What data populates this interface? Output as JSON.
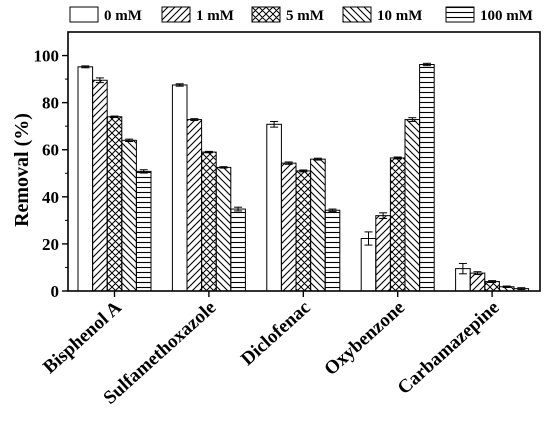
{
  "chart_data": {
    "type": "bar",
    "ylabel": "Removal (%)",
    "xlabel": "",
    "ylim": [
      0,
      110
    ],
    "yticks": [
      0,
      20,
      40,
      60,
      80,
      100
    ],
    "categories": [
      "Bisphenol A",
      "Sulfamethoxazole",
      "Diclofenac",
      "Oxybenzone",
      "Carbamazepine"
    ],
    "series": [
      {
        "name": "0 mM",
        "pattern": "empty",
        "values": [
          95.2,
          87.5,
          70.8,
          22.3,
          9.5
        ],
        "errors": [
          0.4,
          0.5,
          1.2,
          2.8,
          2.2
        ]
      },
      {
        "name": "1 mM",
        "pattern": "diag-fwd",
        "values": [
          89.5,
          72.8,
          54.3,
          32.0,
          7.6
        ],
        "errors": [
          1.0,
          0.4,
          0.5,
          1.2,
          0.6
        ]
      },
      {
        "name": "5 mM",
        "pattern": "crosshatch",
        "values": [
          74.0,
          59.0,
          51.0,
          56.5,
          4.0
        ],
        "errors": [
          0.3,
          0.3,
          0.4,
          0.4,
          0.4
        ]
      },
      {
        "name": "10 mM",
        "pattern": "diag-back",
        "values": [
          64.0,
          52.5,
          56.0,
          72.8,
          1.8
        ],
        "errors": [
          0.5,
          0.3,
          0.4,
          0.8,
          0.3
        ]
      },
      {
        "name": "100 mM",
        "pattern": "horizontal",
        "values": [
          50.8,
          34.8,
          34.3,
          96.2,
          1.0
        ],
        "errors": [
          0.7,
          0.8,
          0.5,
          0.5,
          0.4
        ]
      }
    ],
    "legend_placement": "top",
    "grid": false
  }
}
